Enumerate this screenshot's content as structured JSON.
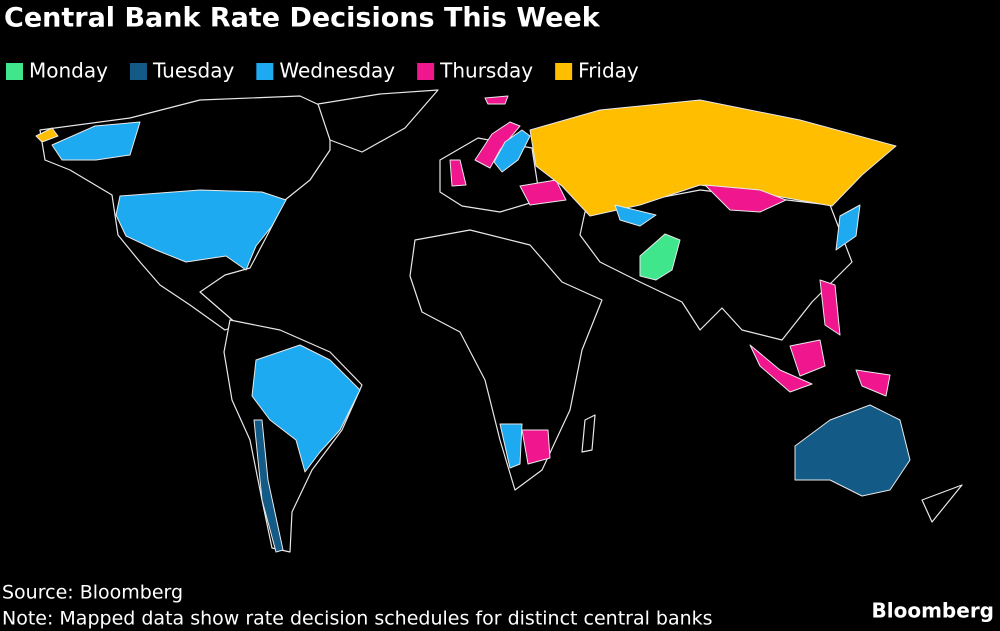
{
  "title": "Central Bank Rate Decisions This Week",
  "legend": [
    {
      "label": "Monday",
      "color": "#3fe68c"
    },
    {
      "label": "Tuesday",
      "color": "#135a86"
    },
    {
      "label": "Wednesday",
      "color": "#1eaaf1"
    },
    {
      "label": "Thursday",
      "color": "#f0168e"
    },
    {
      "label": "Friday",
      "color": "#ffbe00"
    }
  ],
  "source": "Source: Bloomberg",
  "note": "Note: Mapped data show rate decision schedules for distinct central banks",
  "logo": "Bloomberg"
}
